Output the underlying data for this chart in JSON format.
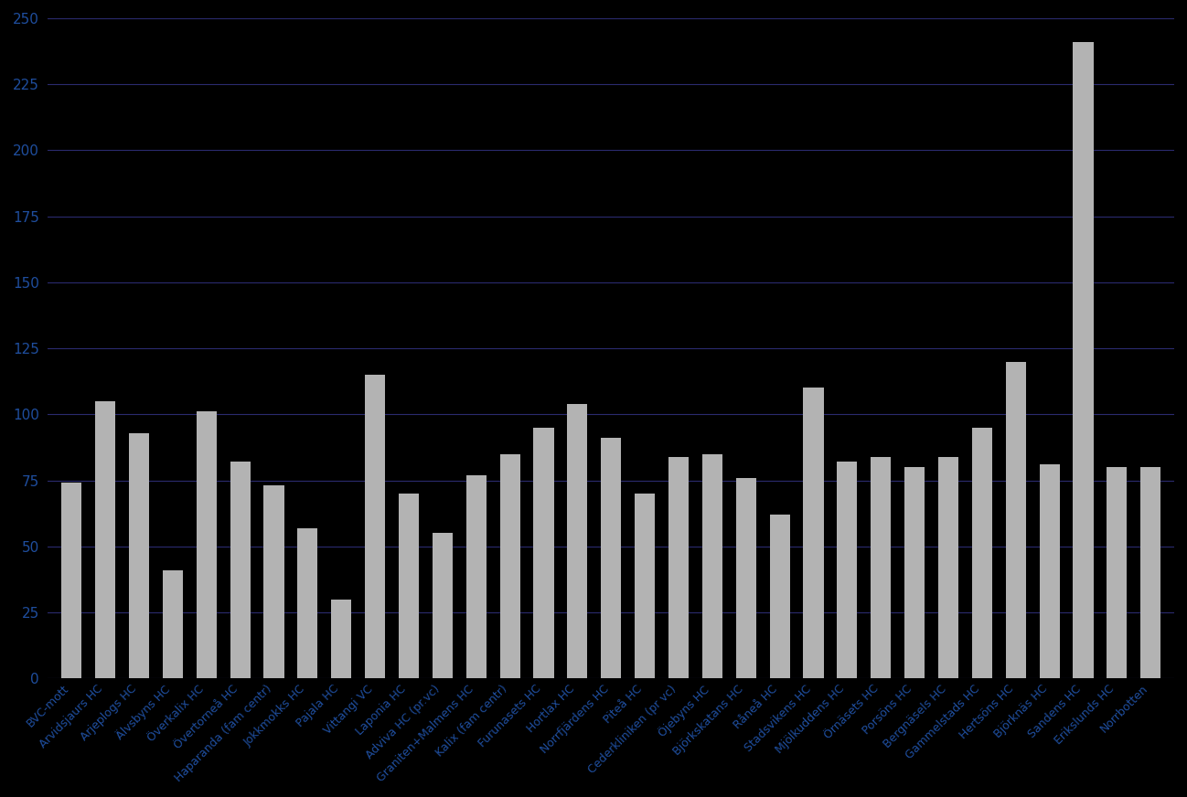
{
  "categories": [
    "BVC-mott",
    "Arvidsjaurs HC",
    "Arjeplogs HC",
    "Älvsbyns HC",
    "Överkalix HC",
    "Övertorneå HC",
    "Haparanda (fam centr)",
    "Jokkmokks HC",
    "Pajala HC",
    "Vittangi VC",
    "Laponia HC",
    "Adviva HC (pr.vc)",
    "Graniten+Malmens HC",
    "Kalix (fam centr)",
    "Furunasets HC",
    "Hortlax HC",
    "Norrfjärdens HC",
    "Piteå HC",
    "Cederkliniken (pr vc)",
    "Öjebyns HC",
    "Björkskatans HC",
    "Råneå HC",
    "Stadsvikens HC",
    "Mjölkuddens HC",
    "Örnäsets HC",
    "Porsöns HC",
    "Bergnäsels HC",
    "Gammelstads HC",
    "Hertsöns HC",
    "Björknäs HC",
    "Sandens HC",
    "Erikslunds HC",
    "Norrbotten"
  ],
  "values": [
    74,
    105,
    93,
    41,
    101,
    82,
    73,
    57,
    30,
    115,
    70,
    55,
    77,
    85,
    95,
    104,
    91,
    70,
    84,
    85,
    76,
    62,
    110,
    82,
    84,
    80,
    84,
    95,
    120,
    81,
    241,
    80,
    80
  ],
  "bar_color": "#b3b3b3",
  "background_color": "#000000",
  "text_color": "#1f4e9e",
  "grid_color": "#2a2a6e",
  "ylim": [
    0,
    250
  ],
  "yticks": [
    0,
    25,
    50,
    75,
    100,
    125,
    150,
    175,
    200,
    225,
    250
  ]
}
